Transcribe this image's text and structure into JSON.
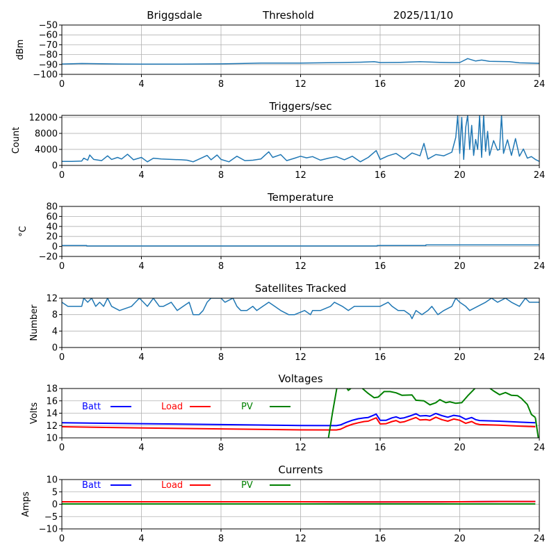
{
  "header": {
    "station": "Briggsdale",
    "mode": "Threshold",
    "date": "2025/11/10"
  },
  "chart_data": [
    {
      "id": "threshold",
      "type": "line",
      "title": "",
      "xlabel": "",
      "ylabel": "dBm",
      "xlim": [
        0,
        24
      ],
      "ylim": [
        -100,
        -50
      ],
      "xticks": [
        0,
        4,
        8,
        12,
        16,
        20,
        24
      ],
      "yticks": [
        -100,
        -90,
        -80,
        -70,
        -60,
        -50
      ],
      "ytick_labels": [
        "−100",
        "−90",
        "−80",
        "−70",
        "−60",
        "−50"
      ],
      "grid": true,
      "series": [
        {
          "name": "Threshold",
          "color": "#1f77b4",
          "x": [
            0,
            1,
            2,
            3,
            4,
            6,
            8,
            9,
            10,
            12,
            14,
            15,
            15.7,
            16,
            17,
            18,
            19,
            19.5,
            20,
            20.4,
            20.8,
            21.1,
            21.5,
            22,
            22.5,
            23,
            24
          ],
          "y": [
            -89.5,
            -89,
            -89.3,
            -89.5,
            -89.6,
            -89.6,
            -89.4,
            -89,
            -88.6,
            -88.5,
            -88,
            -87.7,
            -87.2,
            -88,
            -87.8,
            -87.2,
            -87.8,
            -88,
            -88,
            -84,
            -86.5,
            -85.5,
            -86.8,
            -87,
            -87.2,
            -88.3,
            -88.8
          ]
        }
      ]
    },
    {
      "id": "triggers",
      "type": "line",
      "title": "Triggers/sec",
      "xlabel": "",
      "ylabel": "Count",
      "xlim": [
        0,
        24
      ],
      "ylim": [
        0,
        12500
      ],
      "xticks": [
        0,
        4,
        8,
        12,
        16,
        20,
        24
      ],
      "yticks": [
        0,
        4000,
        8000,
        12000
      ],
      "ytick_labels": [
        "0",
        "4000",
        "8000",
        "12000"
      ],
      "grid": true,
      "series": [
        {
          "name": "Triggers",
          "color": "#1f77b4",
          "x": [
            0,
            0.5,
            1.0,
            1.1,
            1.3,
            1.4,
            1.6,
            2.0,
            2.3,
            2.5,
            2.8,
            3.0,
            3.3,
            3.6,
            4.0,
            4.3,
            4.6,
            5.0,
            5.5,
            6.0,
            6.3,
            6.6,
            7.0,
            7.3,
            7.5,
            7.8,
            8.0,
            8.4,
            8.8,
            9.2,
            9.6,
            10.0,
            10.4,
            10.6,
            11.0,
            11.3,
            11.7,
            12.0,
            12.3,
            12.6,
            13.0,
            13.4,
            13.8,
            14.2,
            14.6,
            15.0,
            15.4,
            15.8,
            16.0,
            16.4,
            16.8,
            17.2,
            17.6,
            18.0,
            18.2,
            18.4,
            18.8,
            19.2,
            19.6,
            19.8,
            19.9,
            20.0,
            20.1,
            20.2,
            20.3,
            20.4,
            20.5,
            20.6,
            20.7,
            20.8,
            20.9,
            21.0,
            21.1,
            21.2,
            21.3,
            21.4,
            21.5,
            21.7,
            21.9,
            22.0,
            22.1,
            22.2,
            22.4,
            22.6,
            22.8,
            23.0,
            23.2,
            23.4,
            23.6,
            23.8,
            24.0
          ],
          "y": [
            1000,
            1000,
            1100,
            1800,
            1300,
            2600,
            1500,
            1200,
            2400,
            1500,
            2000,
            1600,
            2800,
            1400,
            2000,
            900,
            1800,
            1600,
            1500,
            1400,
            1300,
            900,
            1800,
            2500,
            1400,
            2600,
            1500,
            900,
            2300,
            1200,
            1300,
            1600,
            3400,
            2000,
            2700,
            1200,
            1800,
            2300,
            1900,
            2200,
            1300,
            1800,
            2200,
            1400,
            2300,
            900,
            2000,
            3700,
            1500,
            2400,
            3000,
            1600,
            3100,
            2400,
            5500,
            1600,
            2700,
            2400,
            3300,
            7000,
            12500,
            3000,
            12000,
            1500,
            9500,
            12500,
            4000,
            10000,
            2500,
            6500,
            4000,
            12500,
            2000,
            12500,
            3500,
            8500,
            2500,
            6200,
            3800,
            4000,
            12500,
            3000,
            6400,
            2500,
            6700,
            2300,
            4100,
            1800,
            2200,
            1500,
            1000
          ]
        }
      ]
    },
    {
      "id": "temperature",
      "type": "line",
      "title": "Temperature",
      "xlabel": "",
      "ylabel": "°C",
      "xlim": [
        0,
        24
      ],
      "ylim": [
        -20,
        80
      ],
      "xticks": [
        0,
        4,
        8,
        12,
        16,
        20,
        24
      ],
      "yticks": [
        -20,
        0,
        20,
        40,
        60,
        80
      ],
      "ytick_labels": [
        "−20",
        "0",
        "20",
        "40",
        "60",
        "80"
      ],
      "grid": true,
      "series": [
        {
          "name": "Temperature",
          "color": "#1f77b4",
          "x": [
            0,
            1.25,
            1.25,
            15.85,
            15.85,
            18.3,
            18.3,
            24
          ],
          "y": [
            2,
            2,
            1,
            1,
            2,
            2,
            3,
            3
          ]
        }
      ]
    },
    {
      "id": "satellites",
      "type": "line",
      "title": "Satellites Tracked",
      "xlabel": "",
      "ylabel": "Number",
      "xlim": [
        0,
        24
      ],
      "ylim": [
        0,
        12
      ],
      "xticks": [
        0,
        4,
        8,
        12,
        16,
        20,
        24
      ],
      "yticks": [
        0,
        4,
        8,
        12
      ],
      "ytick_labels": [
        "0",
        "4",
        "8",
        "12"
      ],
      "grid": true,
      "series": [
        {
          "name": "Satellites",
          "color": "#1f77b4",
          "x": [
            0,
            0.3,
            1.0,
            1.1,
            1.3,
            1.5,
            1.7,
            1.9,
            2.1,
            2.3,
            2.5,
            2.9,
            3.5,
            3.7,
            3.9,
            4.1,
            4.3,
            4.6,
            4.9,
            5.1,
            5.5,
            5.8,
            6.1,
            6.4,
            6.6,
            6.9,
            7.1,
            7.3,
            7.5,
            7.7,
            8.0,
            8.2,
            8.6,
            8.8,
            9.0,
            9.3,
            9.6,
            9.8,
            10.1,
            10.4,
            10.7,
            11.0,
            11.4,
            11.7,
            12.2,
            12.5,
            12.6,
            13.0,
            13.5,
            13.7,
            14.1,
            14.4,
            14.7,
            15.0,
            15.4,
            16.0,
            16.4,
            16.6,
            16.9,
            17.2,
            17.5,
            17.6,
            17.8,
            18.1,
            18.4,
            18.6,
            18.9,
            19.2,
            19.6,
            19.8,
            20.0,
            20.3,
            20.5,
            20.9,
            21.3,
            21.6,
            21.9,
            22.3,
            22.6,
            23.0,
            23.3,
            23.5,
            24.0
          ],
          "y": [
            11,
            10,
            10,
            12,
            11,
            12,
            10,
            11,
            10,
            12,
            10,
            9,
            10,
            11,
            12,
            11,
            10,
            12,
            10,
            10,
            11,
            9,
            10,
            11,
            8,
            8,
            9,
            11,
            12,
            12,
            12,
            11,
            12,
            10,
            9,
            9,
            10,
            9,
            10,
            11,
            10,
            9,
            8,
            8,
            9,
            8,
            9,
            9,
            10,
            11,
            10,
            9,
            10,
            10,
            10,
            10,
            11,
            10,
            9,
            9,
            8,
            7,
            9,
            8,
            9,
            10,
            8,
            9,
            10,
            12,
            11,
            10,
            9,
            10,
            11,
            12,
            11,
            12,
            11,
            10,
            12,
            11,
            11
          ]
        }
      ]
    },
    {
      "id": "voltages",
      "type": "line",
      "title": "Voltages",
      "xlabel": "",
      "ylabel": "Volts",
      "xlim": [
        0,
        24
      ],
      "ylim": [
        10,
        18
      ],
      "xticks": [
        0,
        4,
        8,
        12,
        16,
        20,
        24
      ],
      "yticks": [
        10,
        12,
        14,
        16,
        18
      ],
      "ytick_labels": [
        "10",
        "12",
        "14",
        "16",
        "18"
      ],
      "grid": true,
      "legend": "top-left",
      "series": [
        {
          "name": "Batt",
          "color": "#0000ff",
          "x": [
            0,
            4,
            8,
            12,
            13.8,
            14.0,
            14.3,
            14.6,
            14.9,
            15.2,
            15.4,
            15.8,
            16.0,
            16.3,
            16.6,
            16.8,
            17.0,
            17.2,
            17.5,
            17.8,
            18.0,
            18.3,
            18.5,
            18.8,
            19.1,
            19.4,
            19.7,
            20.0,
            20.3,
            20.6,
            20.8,
            21.0,
            22.0,
            23.0,
            23.8
          ],
          "y": [
            12.45,
            12.3,
            12.15,
            12.0,
            11.98,
            12.1,
            12.5,
            12.85,
            13.1,
            13.25,
            13.3,
            13.85,
            12.85,
            12.85,
            13.25,
            13.4,
            13.15,
            13.25,
            13.55,
            13.9,
            13.55,
            13.6,
            13.5,
            13.95,
            13.6,
            13.35,
            13.65,
            13.5,
            13.0,
            13.3,
            12.95,
            12.8,
            12.7,
            12.55,
            12.45
          ]
        },
        {
          "name": "Load",
          "color": "#ff0000",
          "x": [
            0,
            4,
            8,
            12,
            13.8,
            14.0,
            14.3,
            14.6,
            14.9,
            15.2,
            15.4,
            15.8,
            16.0,
            16.3,
            16.6,
            16.8,
            17.0,
            17.2,
            17.5,
            17.8,
            18.0,
            18.3,
            18.5,
            18.8,
            19.1,
            19.4,
            19.7,
            20.0,
            20.3,
            20.6,
            20.8,
            21.0,
            22.0,
            23.0,
            23.8
          ],
          "y": [
            11.8,
            11.6,
            11.45,
            11.3,
            11.28,
            11.4,
            11.85,
            12.2,
            12.45,
            12.65,
            12.7,
            13.25,
            12.25,
            12.3,
            12.65,
            12.8,
            12.5,
            12.6,
            12.95,
            13.3,
            12.9,
            12.95,
            12.85,
            13.35,
            12.95,
            12.7,
            13.05,
            12.85,
            12.35,
            12.65,
            12.3,
            12.15,
            12.05,
            11.9,
            11.8
          ]
        },
        {
          "name": "PV",
          "color": "#008000",
          "x": [
            13.4,
            13.6,
            13.9,
            14.3,
            14.4,
            14.6,
            15.0,
            15.4,
            15.7,
            15.9,
            16.2,
            16.5,
            16.8,
            17.1,
            17.6,
            17.8,
            18.2,
            18.5,
            18.8,
            19.0,
            19.3,
            19.5,
            19.8,
            20.1,
            20.4,
            20.7,
            21.0,
            21.4,
            21.7,
            22.0,
            22.3,
            22.6,
            22.9,
            23.1,
            23.4,
            23.6,
            23.8
          ],
          "y": [
            10.0,
            14.0,
            19.5,
            18.2,
            17.7,
            18.2,
            18.3,
            17.2,
            16.5,
            16.6,
            17.5,
            17.5,
            17.3,
            16.9,
            16.95,
            16.1,
            16.0,
            15.35,
            15.7,
            16.2,
            15.7,
            15.85,
            15.6,
            15.7,
            16.8,
            17.8,
            18.8,
            18.3,
            17.6,
            17.0,
            17.35,
            16.9,
            16.85,
            16.4,
            15.4,
            13.8,
            13.3
          ]
        }
      ],
      "pv_tail": {
        "x": [
          23.8,
          23.95
        ],
        "y": [
          13.3,
          10.0
        ]
      }
    },
    {
      "id": "currents",
      "type": "line",
      "title": "Currents",
      "xlabel": "",
      "ylabel": "Amps",
      "xlim": [
        0,
        24
      ],
      "ylim": [
        -10,
        10
      ],
      "xticks": [
        0,
        4,
        8,
        12,
        16,
        20,
        24
      ],
      "yticks": [
        -10,
        -5,
        0,
        5,
        10
      ],
      "ytick_labels": [
        "−10",
        "−5",
        "0",
        "5",
        "10"
      ],
      "grid": true,
      "legend": "top-left",
      "series": [
        {
          "name": "Batt",
          "color": "#0000ff",
          "x": [
            0,
            4,
            8,
            12,
            16,
            20,
            22,
            23.8
          ],
          "y": [
            1.0,
            1.0,
            1.0,
            1.0,
            0.9,
            1.0,
            1.1,
            1.1
          ]
        },
        {
          "name": "Load",
          "color": "#ff0000",
          "x": [
            0,
            4,
            8,
            12,
            16,
            20,
            22,
            23.8
          ],
          "y": [
            1.0,
            1.0,
            1.0,
            1.0,
            0.9,
            1.0,
            1.1,
            1.1
          ]
        },
        {
          "name": "PV",
          "color": "#008000",
          "x": [
            0,
            4,
            8,
            12,
            16,
            20,
            23.8
          ],
          "y": [
            0.1,
            0.1,
            0.1,
            0.1,
            0.1,
            0.1,
            0.1
          ]
        }
      ]
    }
  ]
}
